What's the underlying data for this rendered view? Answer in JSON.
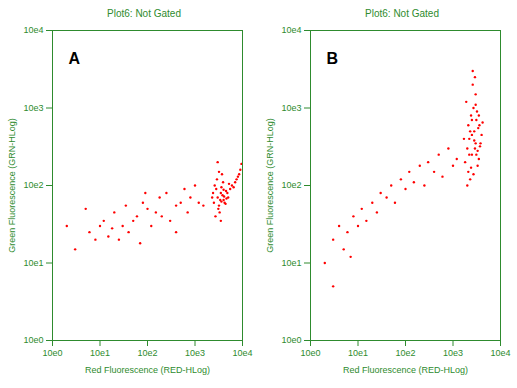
{
  "chart_data": [
    {
      "type": "scatter",
      "title": "Plot6: Not Gated",
      "annotation": "A",
      "x_label": "Red Fluorescence (RED-HLog)",
      "y_label": "Green Fluorescence (GRN-HLog)",
      "log": true,
      "grid": false,
      "color": "#ff0000",
      "xlim": [
        1,
        10000
      ],
      "ylim": [
        1,
        10000
      ],
      "xticks": [
        {
          "value": 1,
          "label": "10e0"
        },
        {
          "value": 10,
          "label": "10e1"
        },
        {
          "value": 100,
          "label": "10e2"
        },
        {
          "value": 1000,
          "label": "10e3"
        },
        {
          "value": 10000,
          "label": "10e4"
        }
      ],
      "yticks": [
        {
          "value": 1,
          "label": "10e0"
        },
        {
          "value": 10,
          "label": "10e1"
        },
        {
          "value": 100,
          "label": "10e2"
        },
        {
          "value": 1000,
          "label": "10e3"
        },
        {
          "value": 10000,
          "label": "10e4"
        }
      ],
      "x": [
        2500,
        3000,
        3500,
        4000,
        2800,
        3200,
        3800,
        4500,
        5000,
        2600,
        3100,
        3600,
        4200,
        2900,
        3300,
        3900,
        4800,
        5500,
        6000,
        7000,
        8000,
        9000,
        2700,
        3400,
        3700,
        4100,
        4400,
        3000,
        3500,
        2400,
        3200,
        3600,
        4000,
        4600,
        5200,
        6500,
        7500,
        8500,
        9500,
        2300,
        2,
        3,
        5,
        6,
        8,
        10,
        12,
        15,
        18,
        20,
        25,
        30,
        35,
        40,
        50,
        60,
        70,
        80,
        100,
        120,
        150,
        180,
        200,
        250,
        300,
        400,
        500,
        600,
        700,
        800,
        1000,
        1200,
        1500,
        400,
        90
      ],
      "values": [
        60,
        70,
        80,
        65,
        90,
        55,
        75,
        85,
        70,
        100,
        50,
        95,
        60,
        120,
        45,
        110,
        80,
        90,
        100,
        110,
        130,
        160,
        40,
        65,
        140,
        72,
        58,
        200,
        35,
        80,
        150,
        62,
        88,
        68,
        105,
        95,
        120,
        140,
        190,
        70,
        30,
        15,
        50,
        25,
        20,
        30,
        35,
        22,
        28,
        45,
        20,
        30,
        55,
        25,
        35,
        40,
        18,
        60,
        50,
        30,
        45,
        70,
        40,
        80,
        35,
        55,
        60,
        90,
        45,
        70,
        100,
        60,
        55,
        25,
        80
      ]
    },
    {
      "type": "scatter",
      "title": "Plot6: Not Gated",
      "annotation": "B",
      "x_label": "Red Fluorescence (RED-HLog)",
      "y_label": "Green Fluorescence (GRN-HLog)",
      "log": true,
      "grid": false,
      "color": "#ff0000",
      "xlim": [
        1,
        10000
      ],
      "ylim": [
        1,
        10000
      ],
      "xticks": [
        {
          "value": 1,
          "label": "10e0"
        },
        {
          "value": 10,
          "label": "10e1"
        },
        {
          "value": 100,
          "label": "10e2"
        },
        {
          "value": 1000,
          "label": "10e3"
        },
        {
          "value": 10000,
          "label": "10e4"
        }
      ],
      "yticks": [
        {
          "value": 1,
          "label": "10e0"
        },
        {
          "value": 10,
          "label": "10e1"
        },
        {
          "value": 100,
          "label": "10e2"
        },
        {
          "value": 1000,
          "label": "10e3"
        },
        {
          "value": 10000,
          "label": "10e4"
        }
      ],
      "x": [
        1800,
        2000,
        2200,
        2500,
        2800,
        3000,
        3300,
        3600,
        4000,
        2100,
        2400,
        2700,
        3100,
        3500,
        1900,
        2300,
        2600,
        2900,
        3200,
        3800,
        2000,
        2500,
        3000,
        3400,
        2200,
        2800,
        3300,
        1700,
        4200,
        2600,
        2400,
        3100,
        2900,
        3700,
        2100,
        2700,
        3500,
        2300,
        3000,
        2500,
        2,
        3,
        4,
        5,
        6,
        8,
        10,
        12,
        15,
        20,
        25,
        30,
        40,
        50,
        60,
        80,
        100,
        120,
        150,
        200,
        250,
        300,
        400,
        500,
        600,
        800,
        1000,
        1200,
        3,
        7
      ],
      "values": [
        200,
        300,
        400,
        250,
        500,
        350,
        180,
        600,
        450,
        150,
        800,
        1000,
        700,
        220,
        1200,
        120,
        2000,
        300,
        900,
        350,
        100,
        450,
        1500,
        550,
        250,
        380,
        280,
        400,
        650,
        3000,
        170,
        250,
        2500,
        320,
        600,
        140,
        800,
        500,
        1100,
        700,
        10,
        20,
        30,
        15,
        25,
        40,
        30,
        50,
        35,
        60,
        45,
        80,
        70,
        100,
        60,
        120,
        90,
        150,
        110,
        180,
        100,
        200,
        150,
        250,
        130,
        300,
        180,
        220,
        5,
        12
      ]
    }
  ]
}
